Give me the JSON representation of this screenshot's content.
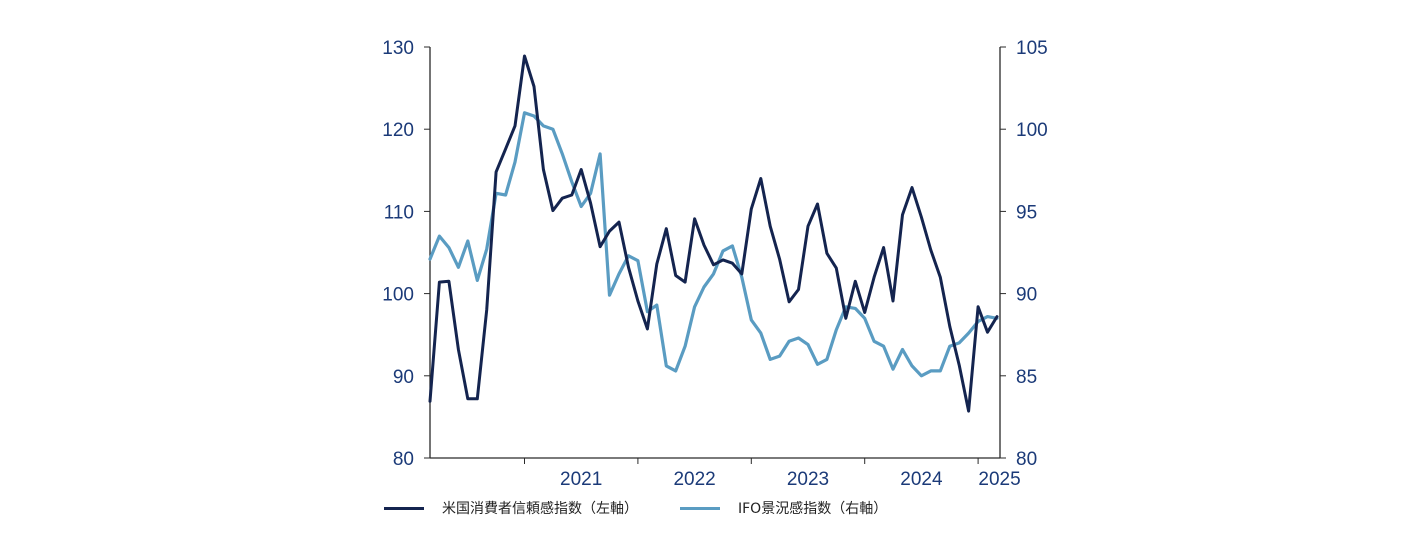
{
  "chart_data": {
    "type": "line",
    "x_unit": "month",
    "x_tick_labels": [
      "2021",
      "2022",
      "2023",
      "2024",
      "2025"
    ],
    "y_left": {
      "min": 80,
      "max": 130,
      "ticks": [
        80,
        90,
        100,
        110,
        120,
        130
      ]
    },
    "y_right": {
      "min": 80,
      "max": 105,
      "ticks": [
        80,
        85,
        90,
        95,
        100,
        105
      ]
    },
    "grid": false,
    "legend_position": "bottom",
    "series": [
      {
        "name": "米国消費者信頼感指数（左軸）",
        "axis": "left",
        "color": "#14244f",
        "points": [
          [
            "2020-03",
            86.9
          ],
          [
            "2020-04",
            101.4
          ],
          [
            "2020-05",
            101.5
          ],
          [
            "2020-06",
            93.2
          ],
          [
            "2020-07",
            87.2
          ],
          [
            "2020-08",
            87.2
          ],
          [
            "2020-09",
            98.0
          ],
          [
            "2020-10",
            114.8
          ],
          [
            "2020-11",
            117.6
          ],
          [
            "2020-12",
            120.4
          ],
          [
            "2021-01",
            128.9
          ],
          [
            "2021-02",
            125.2
          ],
          [
            "2021-03",
            115.1
          ],
          [
            "2021-04",
            110.1
          ],
          [
            "2021-05",
            111.6
          ],
          [
            "2021-06",
            112.0
          ],
          [
            "2021-07",
            115.1
          ],
          [
            "2021-08",
            111.0
          ],
          [
            "2021-09",
            105.7
          ],
          [
            "2021-10",
            107.6
          ],
          [
            "2021-11",
            108.7
          ],
          [
            "2021-12",
            103.2
          ],
          [
            "2022-01",
            99.1
          ],
          [
            "2022-02",
            95.7
          ],
          [
            "2022-03",
            103.6
          ],
          [
            "2022-04",
            107.9
          ],
          [
            "2022-05",
            102.2
          ],
          [
            "2022-06",
            101.4
          ],
          [
            "2022-07",
            109.1
          ],
          [
            "2022-08",
            105.9
          ],
          [
            "2022-09",
            103.5
          ],
          [
            "2022-10",
            104.1
          ],
          [
            "2022-11",
            103.7
          ],
          [
            "2022-12",
            102.4
          ],
          [
            "2023-01",
            110.3
          ],
          [
            "2023-02",
            114.0
          ],
          [
            "2023-03",
            108.2
          ],
          [
            "2023-04",
            104.2
          ],
          [
            "2023-05",
            99.0
          ],
          [
            "2023-06",
            100.5
          ],
          [
            "2023-07",
            108.2
          ],
          [
            "2023-08",
            110.9
          ],
          [
            "2023-09",
            104.9
          ],
          [
            "2023-10",
            103.1
          ],
          [
            "2023-11",
            97.0
          ],
          [
            "2023-12",
            101.5
          ],
          [
            "2024-01",
            97.7
          ],
          [
            "2024-02",
            102.0
          ],
          [
            "2024-03",
            105.6
          ],
          [
            "2024-04",
            99.1
          ],
          [
            "2024-05",
            109.6
          ],
          [
            "2024-06",
            112.9
          ],
          [
            "2024-07",
            109.3
          ],
          [
            "2024-08",
            105.3
          ],
          [
            "2024-09",
            102.0
          ],
          [
            "2024-10",
            96.0
          ],
          [
            "2024-11",
            91.3
          ],
          [
            "2024-12",
            85.7
          ],
          [
            "2025-01",
            98.4
          ],
          [
            "2025-02",
            95.3
          ],
          [
            "2025-03",
            97.2
          ]
        ]
      },
      {
        "name": "IFO景況感指数（右軸）",
        "axis": "right",
        "color": "#5a9cc2",
        "points": [
          [
            "2020-03",
            92.1
          ],
          [
            "2020-04",
            93.5
          ],
          [
            "2020-05",
            92.8
          ],
          [
            "2020-06",
            91.6
          ],
          [
            "2020-07",
            93.2
          ],
          [
            "2020-08",
            90.8
          ],
          [
            "2020-09",
            92.7
          ],
          [
            "2020-10",
            96.1
          ],
          [
            "2020-11",
            96.0
          ],
          [
            "2020-12",
            98.0
          ],
          [
            "2021-01",
            101.0
          ],
          [
            "2021-02",
            100.8
          ],
          [
            "2021-03",
            100.2
          ],
          [
            "2021-04",
            100.0
          ],
          [
            "2021-05",
            98.5
          ],
          [
            "2021-06",
            96.8
          ],
          [
            "2021-07",
            95.3
          ],
          [
            "2021-08",
            96.1
          ],
          [
            "2021-09",
            98.5
          ],
          [
            "2021-10",
            89.9
          ],
          [
            "2021-11",
            91.2
          ],
          [
            "2021-12",
            92.3
          ],
          [
            "2022-01",
            92.0
          ],
          [
            "2022-02",
            88.9
          ],
          [
            "2022-03",
            89.3
          ],
          [
            "2022-04",
            85.6
          ],
          [
            "2022-05",
            85.3
          ],
          [
            "2022-06",
            86.8
          ],
          [
            "2022-07",
            89.2
          ],
          [
            "2022-08",
            90.4
          ],
          [
            "2022-09",
            91.2
          ],
          [
            "2022-10",
            92.6
          ],
          [
            "2022-11",
            92.9
          ],
          [
            "2022-12",
            91.0
          ],
          [
            "2023-01",
            88.4
          ],
          [
            "2023-02",
            87.6
          ],
          [
            "2023-03",
            86.0
          ],
          [
            "2023-04",
            86.2
          ],
          [
            "2023-05",
            87.1
          ],
          [
            "2023-06",
            87.3
          ],
          [
            "2023-07",
            86.9
          ],
          [
            "2023-08",
            85.7
          ],
          [
            "2023-09",
            86.0
          ],
          [
            "2023-10",
            87.8
          ],
          [
            "2023-11",
            89.2
          ],
          [
            "2023-12",
            89.1
          ],
          [
            "2024-01",
            88.5
          ],
          [
            "2024-02",
            87.1
          ],
          [
            "2024-03",
            86.8
          ],
          [
            "2024-04",
            85.4
          ],
          [
            "2024-05",
            86.6
          ],
          [
            "2024-06",
            85.6
          ],
          [
            "2024-07",
            85.0
          ],
          [
            "2024-08",
            85.3
          ],
          [
            "2024-09",
            85.3
          ],
          [
            "2024-10",
            86.8
          ],
          [
            "2024-11",
            87.0
          ],
          [
            "2024-12",
            87.6
          ],
          [
            "2025-01",
            88.3
          ],
          [
            "2025-02",
            88.6
          ],
          [
            "2025-03",
            88.5
          ]
        ]
      }
    ]
  }
}
